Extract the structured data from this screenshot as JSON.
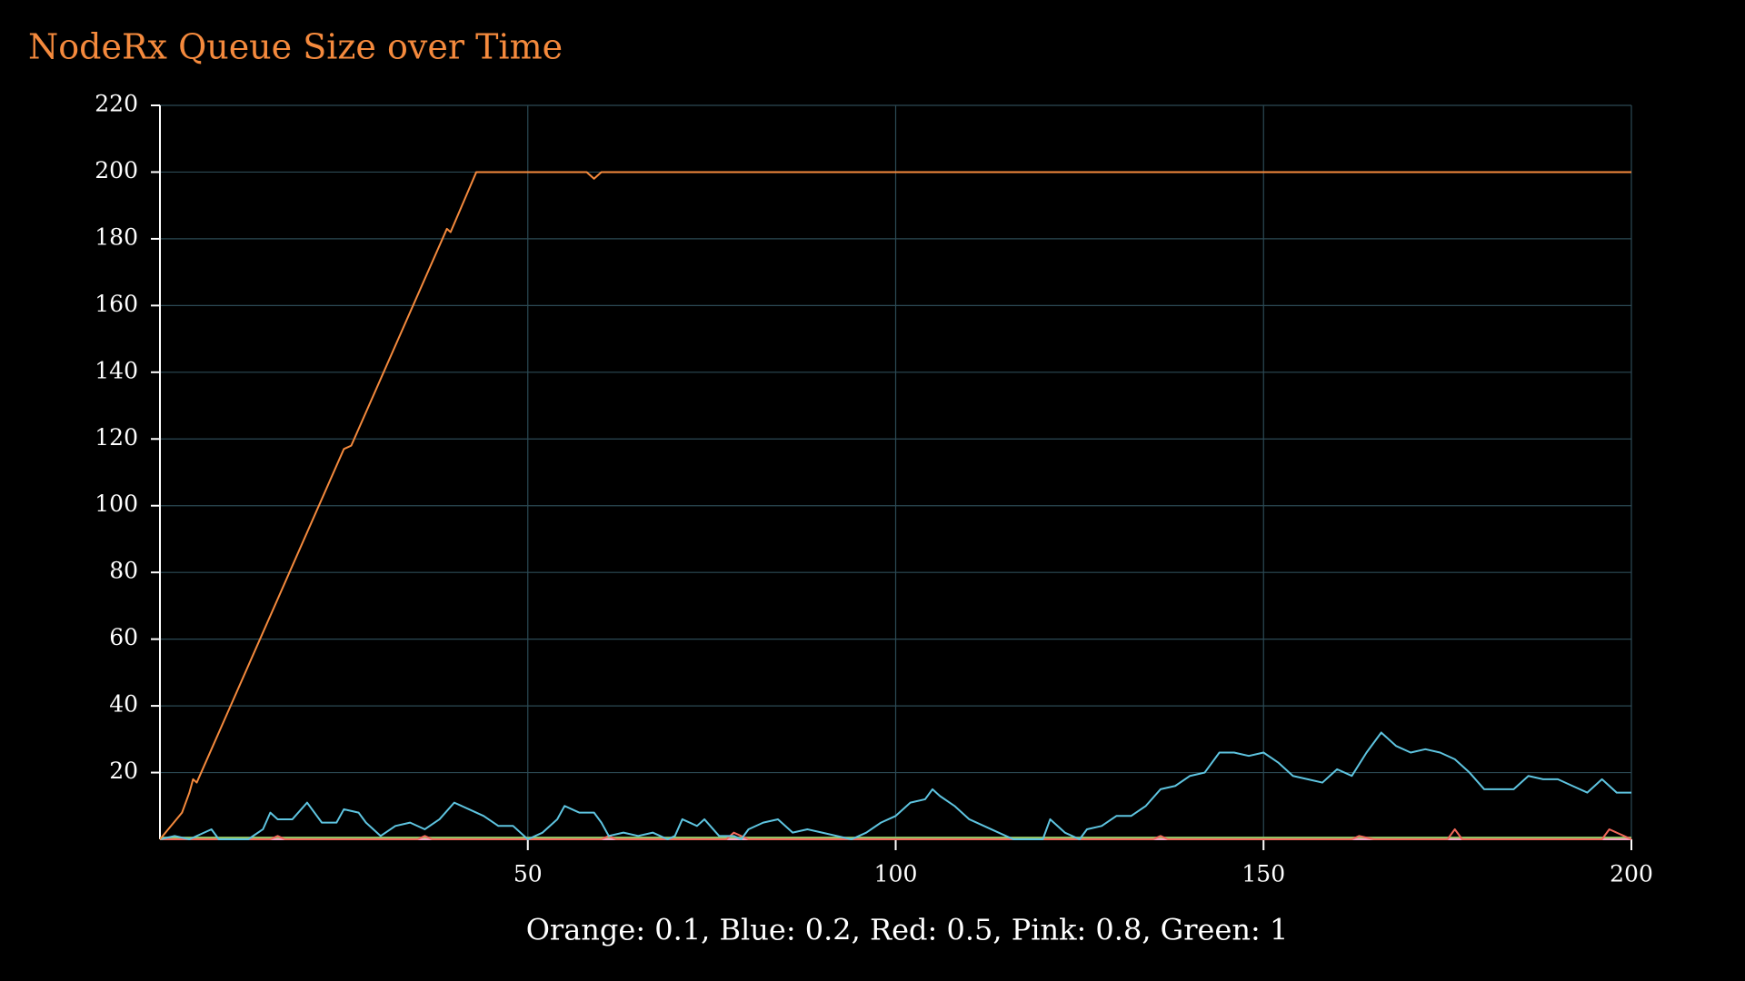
{
  "chart_data": {
    "type": "line",
    "title": "NodeRx Queue Size over Time",
    "xlabel": "Orange: 0.1, Blue: 0.2, Red: 0.5, Pink: 0.8, Green: 1",
    "xlim": [
      0,
      200
    ],
    "xticks": [
      50,
      100,
      150,
      200
    ],
    "ylim": [
      0,
      220
    ],
    "yticks": [
      20,
      40,
      60,
      80,
      100,
      120,
      140,
      160,
      180,
      200,
      220
    ],
    "grid": true,
    "series": [
      {
        "color": "#9acd6a",
        "x": [
          0,
          200
        ],
        "values": [
          0.5,
          0.5
        ]
      },
      {
        "color": "#f5a0c0",
        "x": [
          0,
          200
        ],
        "values": [
          0,
          0
        ]
      },
      {
        "color": "#f0685a",
        "x": [
          0,
          15,
          16,
          17,
          35,
          36,
          37,
          60,
          61,
          62,
          77,
          78,
          80,
          135,
          136,
          137,
          162,
          163,
          165,
          175,
          176,
          177,
          196,
          197,
          199,
          200
        ],
        "values": [
          0,
          0,
          1,
          0,
          0,
          1,
          0,
          0,
          1,
          0,
          0,
          2,
          0,
          0,
          1,
          0,
          0,
          1,
          0,
          0,
          3,
          0,
          0,
          3,
          1,
          0
        ]
      },
      {
        "color": "#5ec4e0",
        "x": [
          0,
          2,
          4,
          7,
          8,
          12,
          14,
          15,
          16,
          18,
          20,
          22,
          24,
          25,
          27,
          28,
          30,
          32,
          34,
          36,
          38,
          40,
          42,
          44,
          46,
          48,
          50,
          52,
          54,
          55,
          57,
          59,
          60,
          61,
          63,
          65,
          67,
          69,
          70,
          71,
          73,
          74,
          76,
          78,
          79,
          80,
          82,
          84,
          86,
          88,
          90,
          92,
          94,
          96,
          98,
          100,
          102,
          104,
          105,
          106,
          108,
          110,
          112,
          114,
          116,
          120,
          121,
          123,
          125,
          126,
          128,
          130,
          132,
          134,
          136,
          138,
          140,
          142,
          144,
          146,
          148,
          150,
          152,
          154,
          156,
          158,
          160,
          162,
          164,
          166,
          168,
          170,
          172,
          174,
          176,
          178,
          180,
          182,
          184,
          186,
          188,
          190,
          192,
          194,
          196,
          198,
          200
        ],
        "values": [
          0,
          1,
          0,
          3,
          0,
          0,
          3,
          8,
          6,
          6,
          11,
          5,
          5,
          9,
          8,
          5,
          1,
          4,
          5,
          3,
          6,
          11,
          9,
          7,
          4,
          4,
          0,
          2,
          6,
          10,
          8,
          8,
          5,
          1,
          2,
          1,
          2,
          0,
          1,
          6,
          4,
          6,
          1,
          1,
          0,
          3,
          5,
          6,
          2,
          3,
          2,
          1,
          0,
          2,
          5,
          7,
          11,
          12,
          15,
          13,
          10,
          6,
          4,
          2,
          0,
          0,
          6,
          2,
          0,
          3,
          4,
          7,
          7,
          10,
          15,
          16,
          19,
          20,
          26,
          26,
          25,
          26,
          23,
          19,
          18,
          17,
          21,
          19,
          26,
          32,
          28,
          26,
          27,
          26,
          24,
          20,
          15,
          15,
          15,
          19,
          18,
          18,
          16,
          14,
          18,
          14,
          14
        ]
      },
      {
        "color": "#f58a3d",
        "x": [
          0,
          3,
          4,
          4.5,
          5,
          6,
          25,
          26,
          39,
          39.5,
          43,
          58,
          59,
          60,
          200
        ],
        "values": [
          0,
          8,
          14,
          18,
          17,
          22,
          117,
          118,
          183,
          182,
          200,
          200,
          198,
          200,
          200
        ]
      }
    ]
  }
}
